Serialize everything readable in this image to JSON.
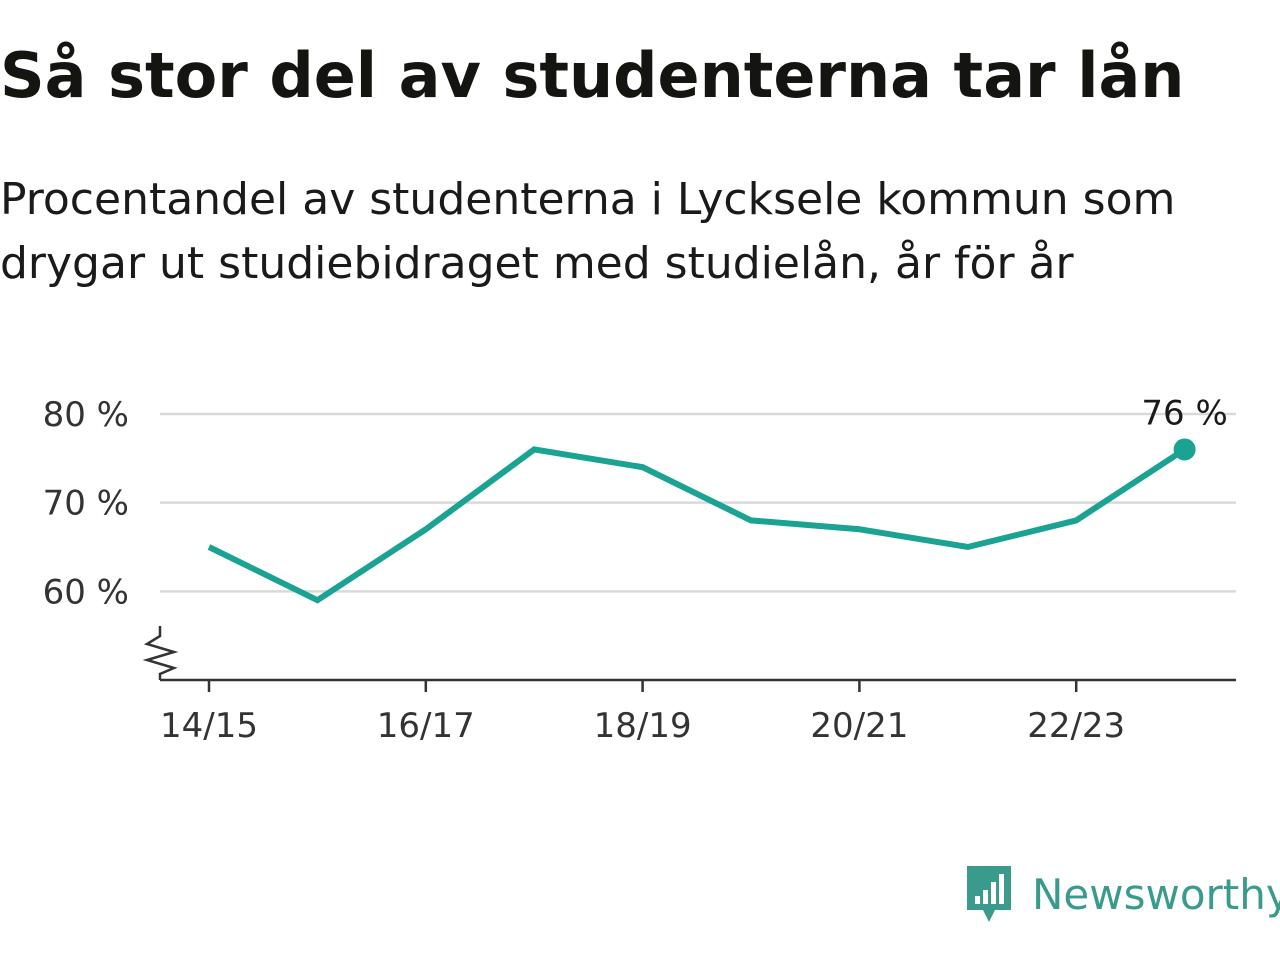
{
  "header": {
    "title": "Så stor del av studenterna tar lån",
    "subtitle": "Procentandel av studenterna i Lycksele kommun som drygar ut studiebidraget med studielån, år för år"
  },
  "brand": {
    "name": "Newsworthy",
    "icon": "newsworthy-logo-icon",
    "color": "#3a9b8c"
  },
  "chart_data": {
    "type": "line",
    "title": "Så stor del av studenterna tar lån",
    "subtitle": "Procentandel av studenterna i Lycksele kommun som drygar ut studiebidraget med studielån, år för år",
    "x": [
      "14/15",
      "15/16",
      "16/17",
      "17/18",
      "18/19",
      "19/20",
      "20/21",
      "21/22",
      "22/23",
      "23/24"
    ],
    "x_tick_labels": [
      "14/15",
      "16/17",
      "18/19",
      "20/21",
      "22/23"
    ],
    "series": [
      {
        "values": [
          65,
          59,
          67,
          76,
          74,
          68,
          67,
          65,
          68,
          76
        ],
        "color": "#1aa393"
      }
    ],
    "y_ticks": [
      60,
      70,
      80
    ],
    "y_tick_labels": [
      "60 %",
      "70 %",
      "80 %"
    ],
    "ylim": [
      50,
      80
    ],
    "y_axis_break": true,
    "grid": "horizontal",
    "end_label": "76 %",
    "xlabel": "",
    "ylabel": ""
  }
}
